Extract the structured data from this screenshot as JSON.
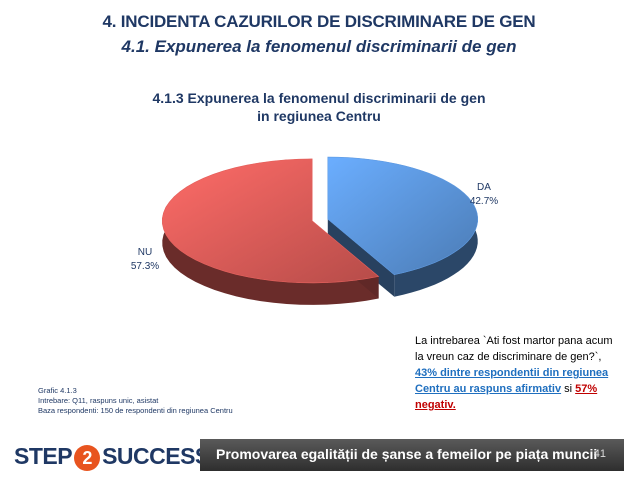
{
  "header": {
    "title": "4. INCIDENTA CAZURILOR DE DISCRIMINARE DE GEN",
    "subtitle": "4.1. Expunerea la fenomenul discriminarii de gen"
  },
  "chart_data": {
    "type": "pie",
    "title_line1": "4.1.3 Expunerea la fenomenul discriminarii de gen",
    "title_line2": "in regiunea Centru",
    "slices": [
      {
        "name": "DA",
        "value": 42.7,
        "label": "42.7%",
        "color": "#4f81bd"
      },
      {
        "name": "NU",
        "value": 57.3,
        "label": "57.3%",
        "color": "#c0504d"
      }
    ]
  },
  "note": {
    "text1": "La intrebarea `Ati fost martor pana acum la vreun caz de discriminare de gen?`, ",
    "highlight": "43% dintre respondentii din regiunea Centru au raspuns afirmativ",
    "text2": " si ",
    "negative": "57% negativ."
  },
  "source": {
    "line1": "Grafic 4.1.3",
    "line2": "Intrebare: Q11, raspuns unic, asistat",
    "line3": "Baza respondenti: 150 de respondenti din regiunea Centru"
  },
  "footer": {
    "logo_left": "STEP",
    "logo_mid": "2",
    "logo_right": "SUCCESS",
    "banner": "Promovarea egalității de șanse a femeilor pe piața muncii",
    "page": "41"
  }
}
